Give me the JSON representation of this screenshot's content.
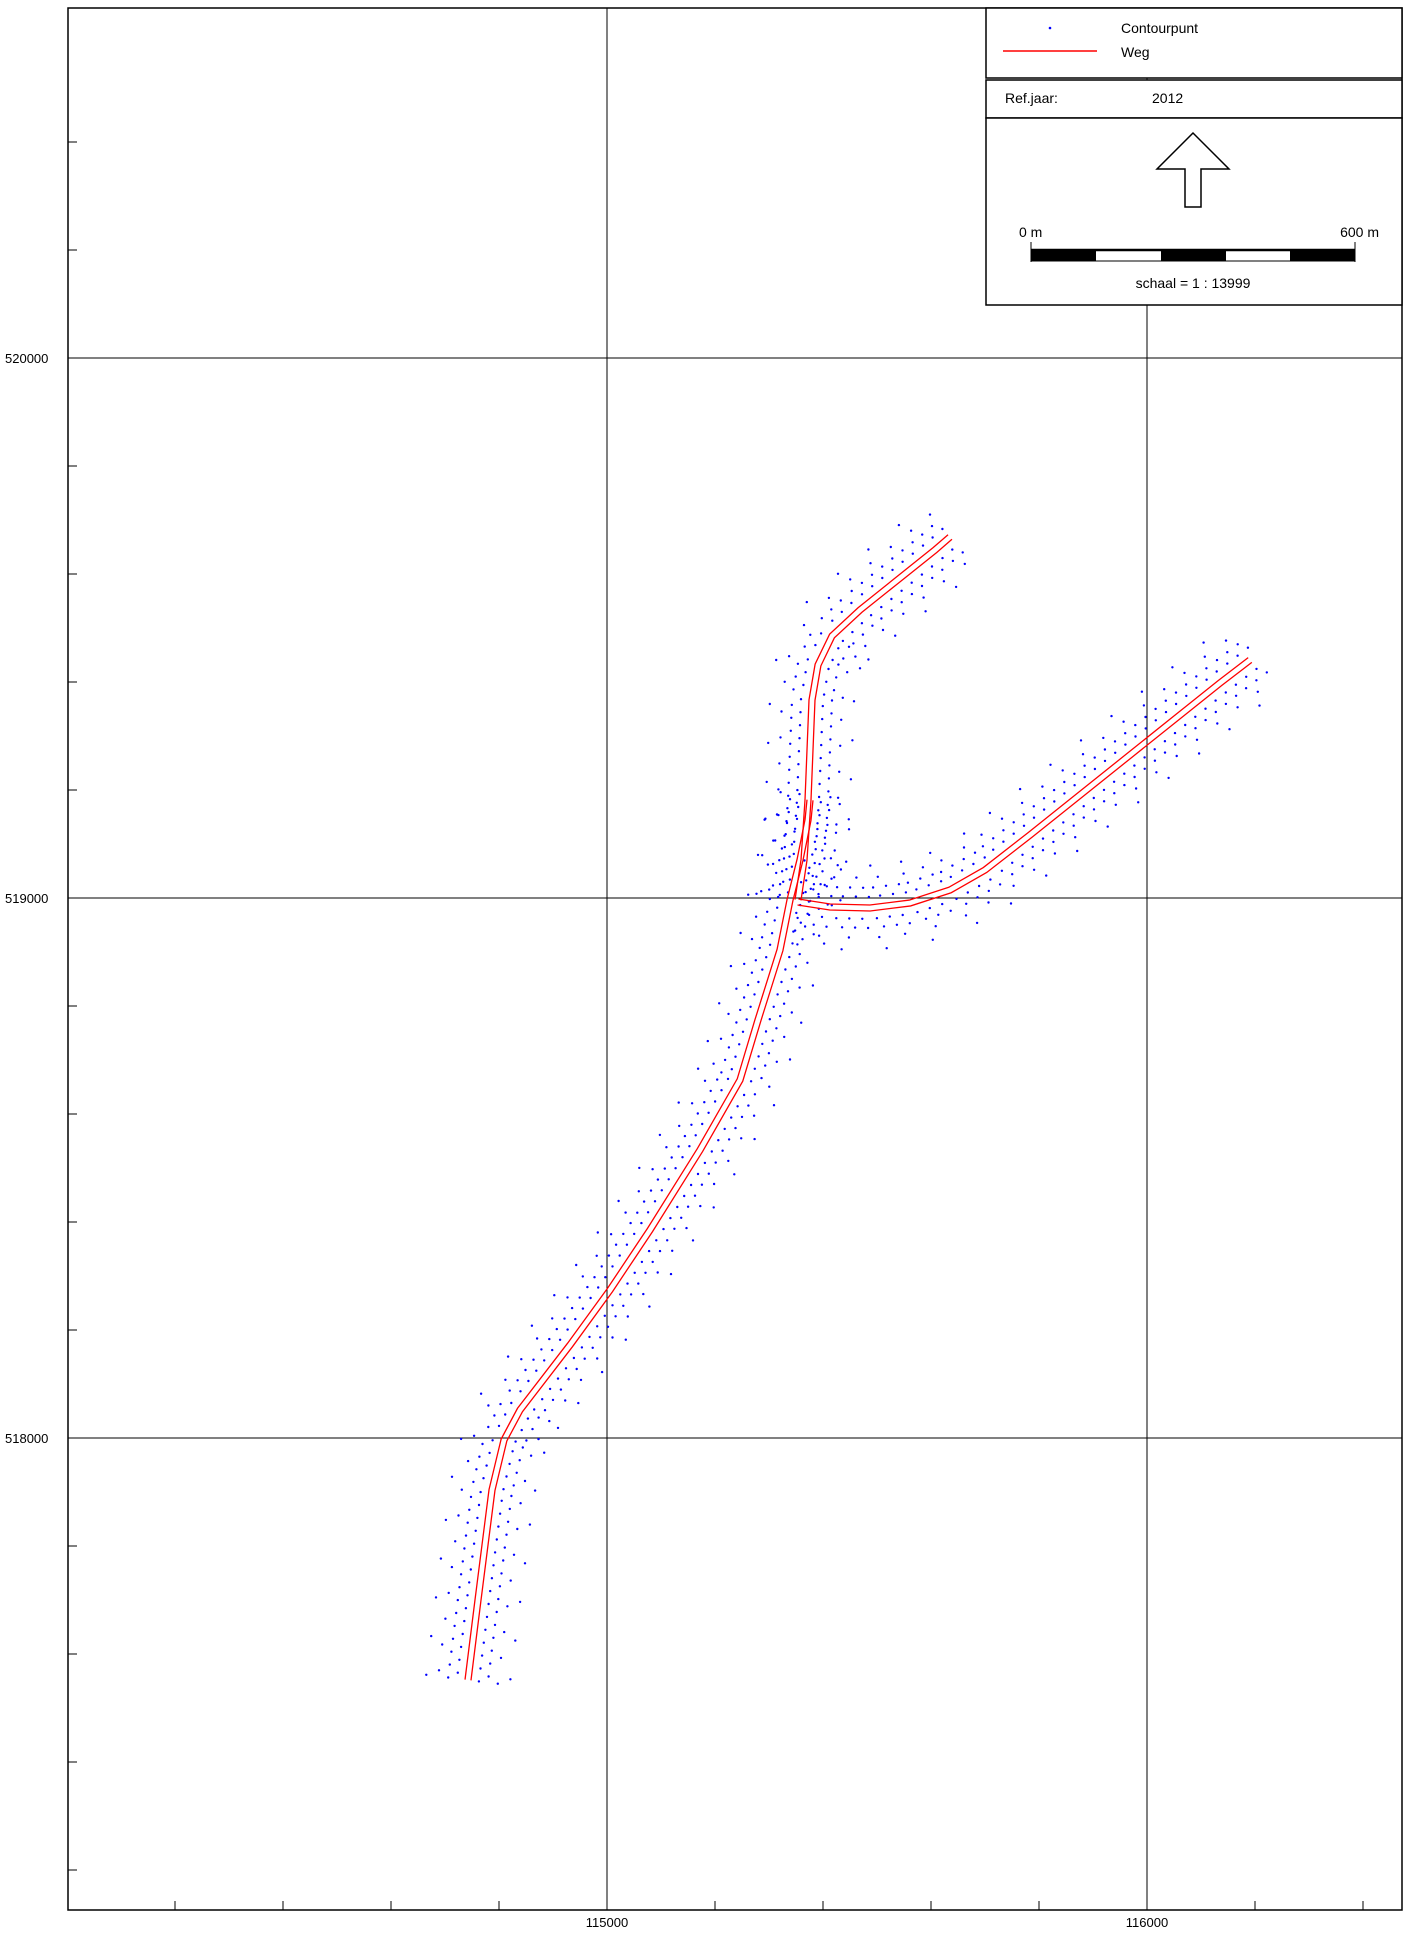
{
  "map": {
    "x_ticks": [
      "115000",
      "116000"
    ],
    "y_ticks": [
      "520000",
      "519000",
      "518000"
    ]
  },
  "legend": {
    "items": [
      {
        "label": "Contourpunt",
        "symbol": "dot",
        "color": "#0000ff"
      },
      {
        "label": "Weg",
        "symbol": "line",
        "color": "#ff0000"
      }
    ],
    "ref_label": "Ref.jaar:",
    "ref_value": "2012",
    "scale_start": "0 m",
    "scale_end": "600 m",
    "scale_text": "schaal = 1 : 13999",
    "north_arrow_icon": "north-arrow-icon"
  },
  "colors": {
    "road": "#ff0000",
    "contour": "#0000ff",
    "grid": "#000000"
  }
}
